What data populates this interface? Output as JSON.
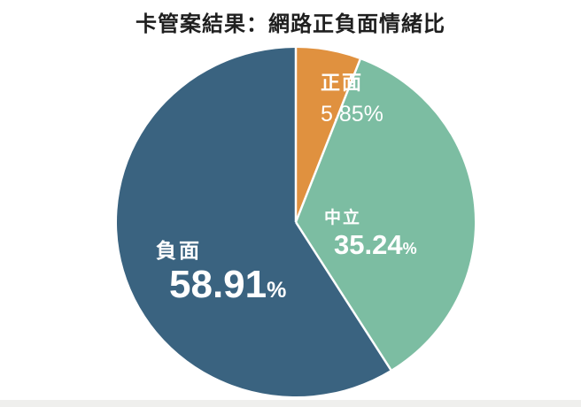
{
  "title": "卡管案結果：網路正負面情緒比",
  "chart_data": {
    "type": "pie",
    "title": "卡管案結果：網路正負面情緒比",
    "labels": [
      "正面",
      "中立",
      "負面"
    ],
    "values": [
      5.85,
      35.24,
      58.91
    ],
    "unit": "%",
    "colors": [
      "#E0913F",
      "#7CBDA2",
      "#3A6380"
    ],
    "start_angle_deg": 0,
    "direction": "clockwise",
    "slice_divider_color": "#FFFFFF",
    "legend": "none",
    "label_placement": "inside",
    "label_color": "#FFFFFF"
  },
  "slice_labels": {
    "positive": {
      "name": "正面",
      "value": "5.85",
      "pct": "%"
    },
    "neutral": {
      "name": "中立",
      "value": "35.24",
      "pct": "%"
    },
    "negative": {
      "name": "負面",
      "value": "58.91",
      "pct": "%"
    }
  }
}
